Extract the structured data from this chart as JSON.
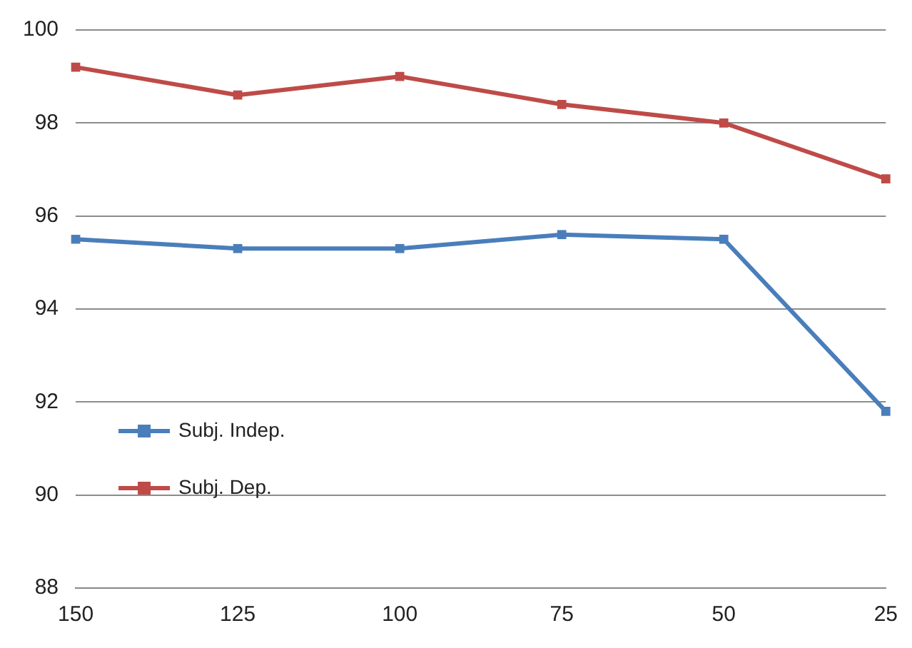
{
  "chart_data": {
    "type": "line",
    "categories": [
      "150",
      "125",
      "100",
      "75",
      "50",
      "25"
    ],
    "series": [
      {
        "name": "Subj. Indep.",
        "color": "#4a7ebb",
        "values": [
          95.5,
          95.3,
          95.3,
          95.6,
          95.5,
          91.8
        ]
      },
      {
        "name": "Subj. Dep.",
        "color": "#be4b48",
        "values": [
          99.2,
          98.6,
          99.0,
          98.4,
          98.0,
          96.8
        ]
      }
    ],
    "ylim": [
      88,
      100
    ],
    "yticks": [
      88,
      90,
      92,
      94,
      96,
      98,
      100
    ],
    "grid": "y",
    "legend": "bottom left",
    "marker": "square",
    "line_style": "solid"
  }
}
